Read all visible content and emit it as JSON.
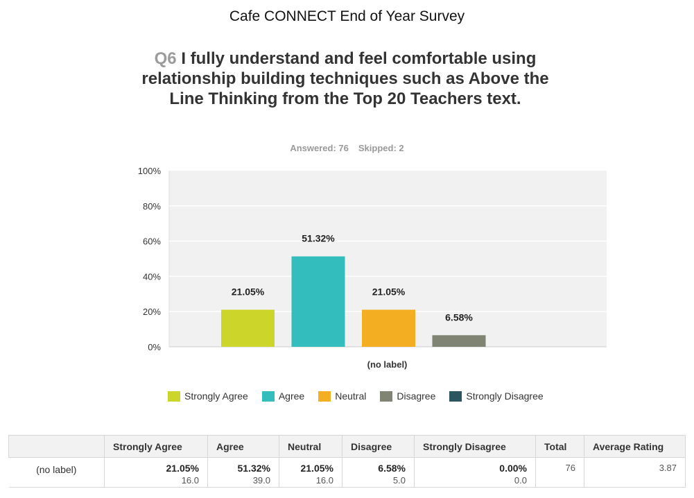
{
  "survey_title": "Cafe CONNECT End of Year Survey",
  "question": {
    "number": "Q6",
    "text": "I fully understand and feel comfortable using relationship building techniques such as Above the Line Thinking from the Top 20 Teachers text."
  },
  "answered_label": "Answered: 76",
  "skipped_label": "Skipped: 2",
  "colors": {
    "strongly_agree": "#cbd52a",
    "agree": "#34bdbd",
    "neutral": "#f4ae21",
    "disagree": "#7f8473",
    "strongly_disagree": "#2b5660",
    "plot_bg": "#f1f1f1",
    "grid": "#ffffff"
  },
  "chart_data": {
    "type": "bar",
    "title": "",
    "xlabel": "(no label)",
    "ylabel": "",
    "ylim": [
      0,
      100
    ],
    "yticks": [
      "0%",
      "20%",
      "40%",
      "60%",
      "80%",
      "100%"
    ],
    "categories": [
      "(no label)"
    ],
    "series": [
      {
        "name": "Strongly Agree",
        "values": [
          21.05
        ],
        "label": "21.05%"
      },
      {
        "name": "Agree",
        "values": [
          51.32
        ],
        "label": "51.32%"
      },
      {
        "name": "Neutral",
        "values": [
          21.05
        ],
        "label": "21.05%"
      },
      {
        "name": "Disagree",
        "values": [
          6.58
        ],
        "label": "6.58%"
      },
      {
        "name": "Strongly Disagree",
        "values": [
          0
        ],
        "label": ""
      }
    ],
    "legend": [
      "Strongly Agree",
      "Agree",
      "Neutral",
      "Disagree",
      "Strongly Disagree"
    ]
  },
  "table": {
    "headers": [
      "",
      "Strongly Agree",
      "Agree",
      "Neutral",
      "Disagree",
      "Strongly Disagree",
      "Total",
      "Average Rating"
    ],
    "rows": [
      {
        "label": "(no label)",
        "cells": [
          {
            "pct": "21.05%",
            "count": "16.0"
          },
          {
            "pct": "51.32%",
            "count": "39.0"
          },
          {
            "pct": "21.05%",
            "count": "16.0"
          },
          {
            "pct": "6.58%",
            "count": "5.0"
          },
          {
            "pct": "0.00%",
            "count": "0.0"
          }
        ],
        "total": "76",
        "average": "3.87"
      }
    ]
  }
}
